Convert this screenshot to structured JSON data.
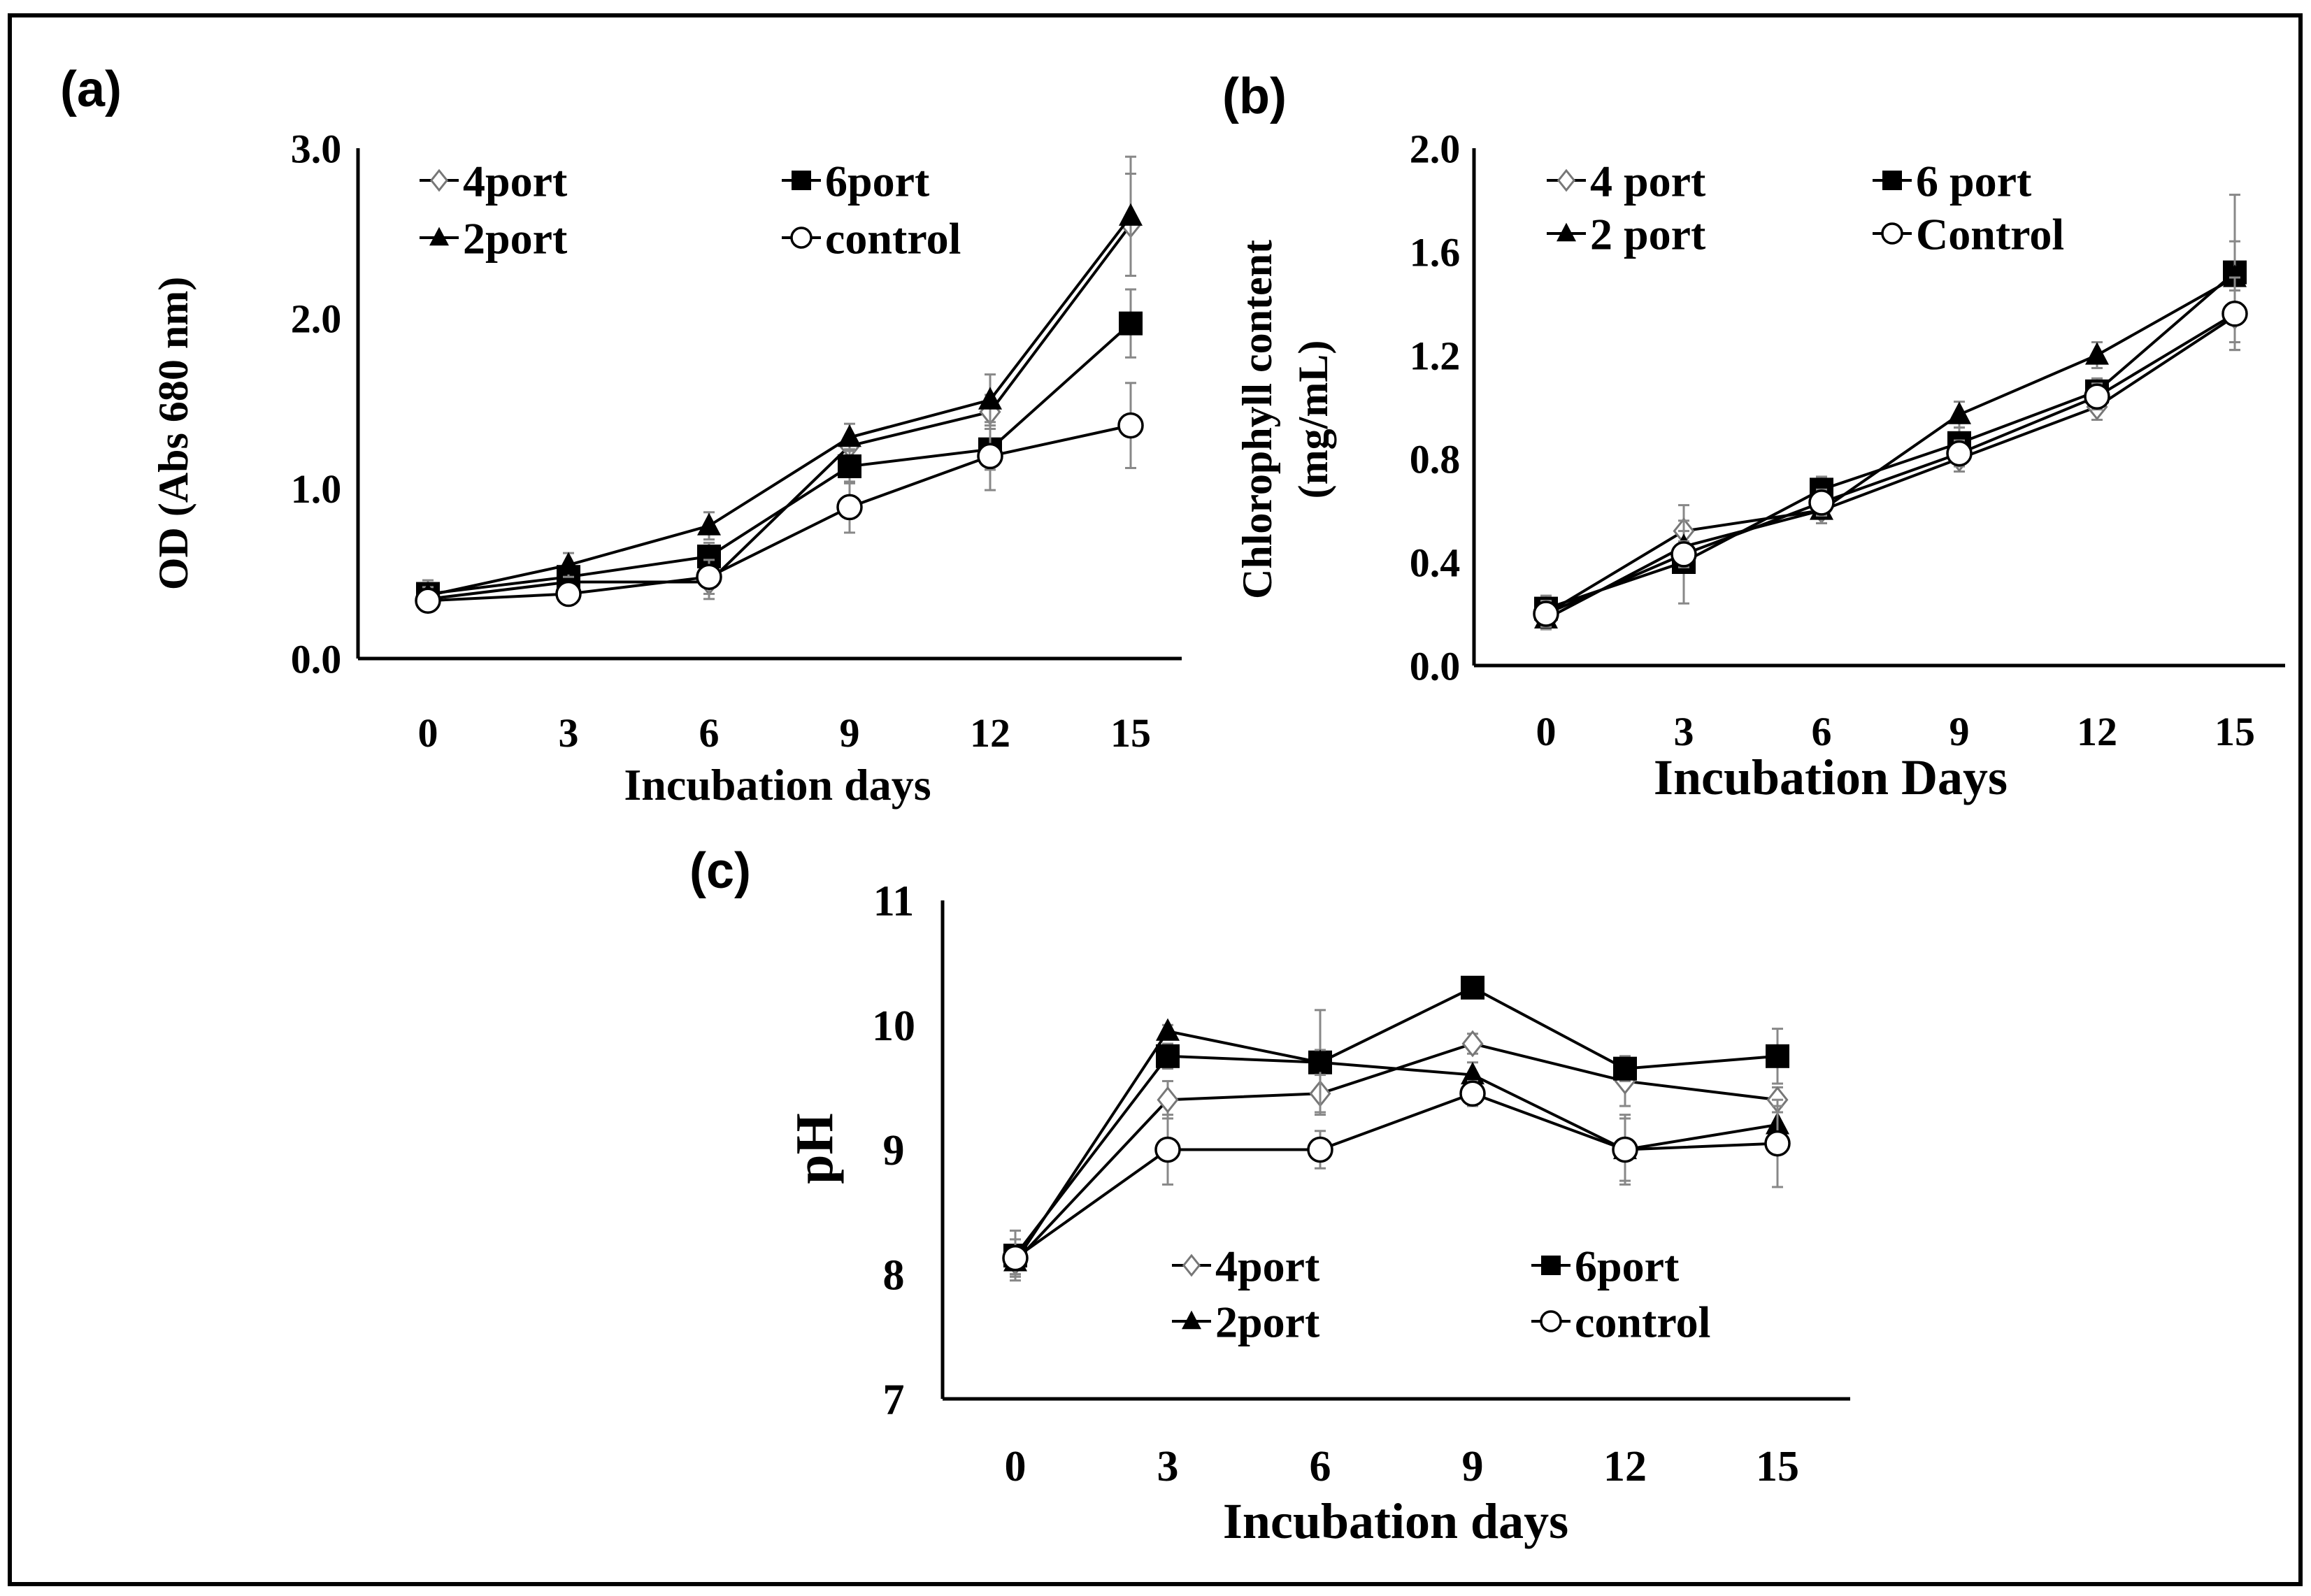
{
  "chart_data": [
    {
      "panel_label": "(a)",
      "type": "line",
      "xlabel": "Incubation days",
      "ylabel": "OD (Abs 680 nm)",
      "x": [
        0,
        3,
        6,
        9,
        12,
        15
      ],
      "x_ticks": [
        "0",
        "3",
        "6",
        "9",
        "12",
        "15"
      ],
      "y_ticks": [
        "0.0",
        "1.0",
        "2.0",
        "3.0"
      ],
      "ylim": [
        0,
        3
      ],
      "grid": false,
      "legend_position": "top-left",
      "series": [
        {
          "name": "4port",
          "marker": "diamond-open",
          "values": [
            0.35,
            0.45,
            0.45,
            1.25,
            1.45,
            2.55
          ],
          "errors": [
            0.05,
            0.05,
            0.1,
            0.06,
            0.1,
            0.3
          ]
        },
        {
          "name": "6port",
          "marker": "square-filled",
          "values": [
            0.38,
            0.48,
            0.6,
            1.13,
            1.23,
            1.97
          ],
          "errors": [
            0.08,
            0.05,
            0.08,
            0.1,
            0.12,
            0.2
          ]
        },
        {
          "name": "2port",
          "marker": "triangle-filled",
          "values": [
            0.37,
            0.55,
            0.78,
            1.3,
            1.52,
            2.6
          ],
          "errors": [
            0.05,
            0.07,
            0.08,
            0.08,
            0.15,
            0.35
          ]
        },
        {
          "name": "control",
          "marker": "circle-open",
          "values": [
            0.34,
            0.38,
            0.48,
            0.89,
            1.19,
            1.37
          ],
          "errors": [
            0.05,
            0.05,
            0.1,
            0.15,
            0.2,
            0.25
          ]
        }
      ]
    },
    {
      "panel_label": "(b)",
      "type": "line",
      "xlabel": "Incubation Days",
      "ylabel_lines": [
        "Chlorophyll content",
        "(mg/mL)"
      ],
      "x": [
        0,
        3,
        6,
        9,
        12,
        15
      ],
      "x_ticks": [
        "0",
        "3",
        "6",
        "9",
        "12",
        "15"
      ],
      "y_ticks": [
        "0.0",
        "0.4",
        "0.8",
        "1.2",
        "1.6",
        "2.0"
      ],
      "ylim": [
        0,
        2
      ],
      "grid": false,
      "legend_position": "top-left",
      "series": [
        {
          "name": "4 port",
          "marker": "diamond-open",
          "values": [
            0.2,
            0.52,
            0.6,
            0.8,
            1.0,
            1.35
          ],
          "errors": [
            0.05,
            0.1,
            0.05,
            0.05,
            0.05,
            0.1
          ]
        },
        {
          "name": "6 port",
          "marker": "square-filled",
          "values": [
            0.22,
            0.4,
            0.68,
            0.86,
            1.06,
            1.52
          ],
          "errors": [
            0.05,
            0.16,
            0.05,
            0.06,
            0.05,
            0.3
          ]
        },
        {
          "name": "2 port",
          "marker": "triangle-filled",
          "values": [
            0.18,
            0.46,
            0.6,
            0.97,
            1.2,
            1.5
          ],
          "errors": [
            0.04,
            0.06,
            0.05,
            0.05,
            0.05,
            0.14
          ]
        },
        {
          "name": "Control",
          "marker": "circle-open",
          "values": [
            0.2,
            0.43,
            0.63,
            0.82,
            1.04,
            1.36
          ],
          "errors": [
            0.05,
            0.05,
            0.05,
            0.05,
            0.05,
            0.14
          ]
        }
      ]
    },
    {
      "panel_label": "(c)",
      "type": "line",
      "xlabel": "Incubation days",
      "ylabel": "pH",
      "x": [
        0,
        3,
        6,
        9,
        12,
        15
      ],
      "x_ticks": [
        "0",
        "3",
        "6",
        "9",
        "12",
        "15"
      ],
      "y_ticks": [
        "7",
        "8",
        "9",
        "10",
        "11"
      ],
      "ylim": [
        7,
        11
      ],
      "grid": false,
      "legend_position": "bottom-center",
      "series": [
        {
          "name": "4port",
          "marker": "diamond-open",
          "values": [
            8.1,
            9.4,
            9.45,
            9.85,
            9.55,
            9.4
          ],
          "errors": [
            0.1,
            0.15,
            0.15,
            0.08,
            0.2,
            0.1
          ]
        },
        {
          "name": "6port",
          "marker": "square-filled",
          "values": [
            8.15,
            9.75,
            9.7,
            10.3,
            9.65,
            9.75
          ],
          "errors": [
            0.2,
            0.1,
            0.42,
            0.05,
            0.1,
            0.22
          ]
        },
        {
          "name": "2port",
          "marker": "triangle-filled",
          "values": [
            8.1,
            9.95,
            9.7,
            9.6,
            9.0,
            9.2
          ],
          "errors": [
            0.1,
            0.05,
            0.1,
            0.1,
            0.25,
            0.15
          ]
        },
        {
          "name": "control",
          "marker": "circle-open",
          "values": [
            8.13,
            9.0,
            9.0,
            9.45,
            9.0,
            9.05
          ],
          "errors": [
            0.15,
            0.28,
            0.15,
            0.1,
            0.28,
            0.35
          ]
        }
      ]
    }
  ]
}
